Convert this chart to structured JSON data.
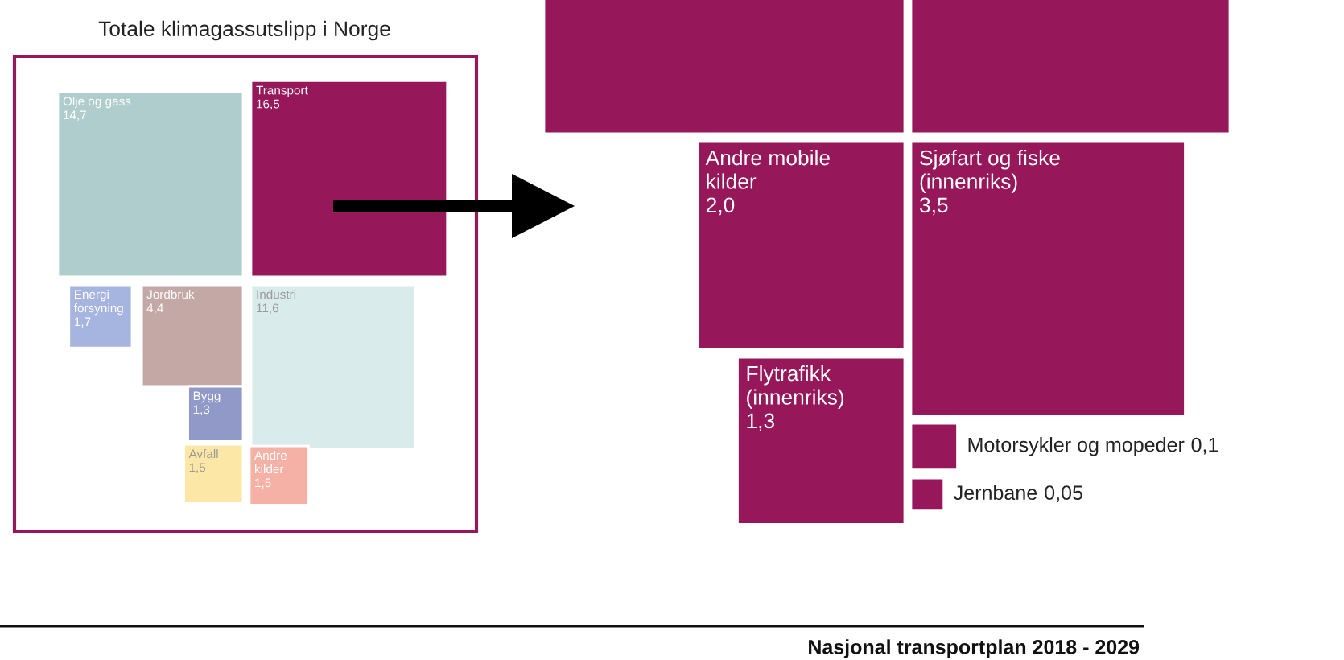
{
  "chart_data": [
    {
      "type": "other",
      "title": "Totale klimagassutslipp i Norge",
      "categories": [
        "Olje og gass",
        "Transport",
        "Energi\nforsyning",
        "Jordbruk",
        "Industri",
        "Bygg",
        "Avfall",
        "Andre\nkilder"
      ],
      "values": [
        14.7,
        16.5,
        1.7,
        4.4,
        11.6,
        1.3,
        1.5,
        1.5
      ],
      "value_labels": [
        "14,7",
        "16,5",
        "1,7",
        "4,4",
        "11,6",
        "1,3",
        "1,5",
        "1,5"
      ],
      "colors": [
        "#afcdcc",
        "#96185a",
        "#a6b4e0",
        "#c4a8a5",
        "#d9ebea",
        "#9199c9",
        "#fde7a6",
        "#f6b1a6"
      ]
    },
    {
      "type": "other",
      "categories": [
        null,
        null,
        "Andre mobile\nkilder",
        "Sjøfart og fiske\n(innenriks)",
        "Flytrafikk\n(innenriks)",
        "Motorsykler og mopeder",
        "Jernbane"
      ],
      "values": [
        null,
        null,
        2.0,
        3.5,
        1.3,
        0.1,
        0.05
      ],
      "value_labels": [
        null,
        null,
        "2,0",
        "3,5",
        "1,3",
        "0,1",
        "0,05"
      ],
      "colors": [
        "#96185a",
        "#96185a",
        "#96185a",
        "#96185a",
        "#96185a",
        "#96185a",
        "#96185a"
      ],
      "annotations": [
        "Nasjonal transportplan 2018 - 2029"
      ]
    }
  ]
}
